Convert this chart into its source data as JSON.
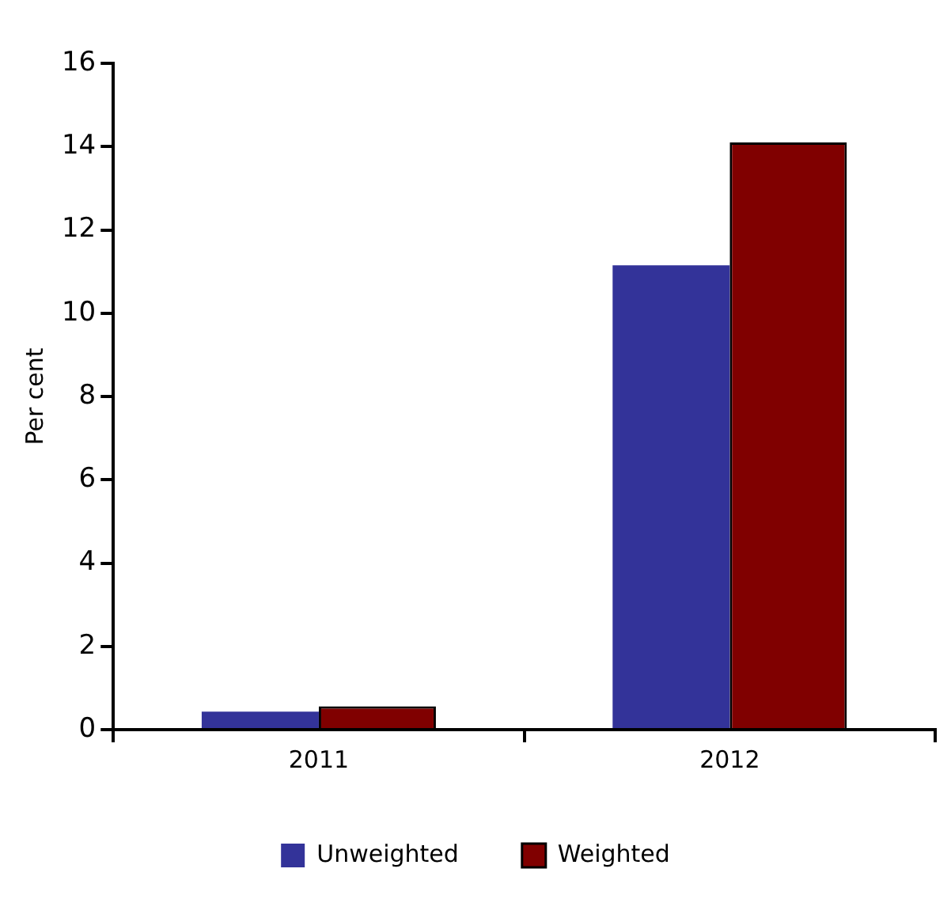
{
  "chart_data": {
    "type": "bar",
    "ylabel": "Per cent",
    "categories": [
      "2011",
      "2012"
    ],
    "series": [
      {
        "name": "Unweighted",
        "color": "#333399",
        "values": [
          0.43,
          11.15
        ]
      },
      {
        "name": "Weighted",
        "color": "#800000",
        "values": [
          0.56,
          14.1
        ]
      }
    ],
    "ylim": [
      0,
      16
    ],
    "yticks": [
      0,
      2,
      4,
      6,
      8,
      10,
      12,
      14,
      16
    ],
    "grid": false,
    "legend": "bottom"
  }
}
